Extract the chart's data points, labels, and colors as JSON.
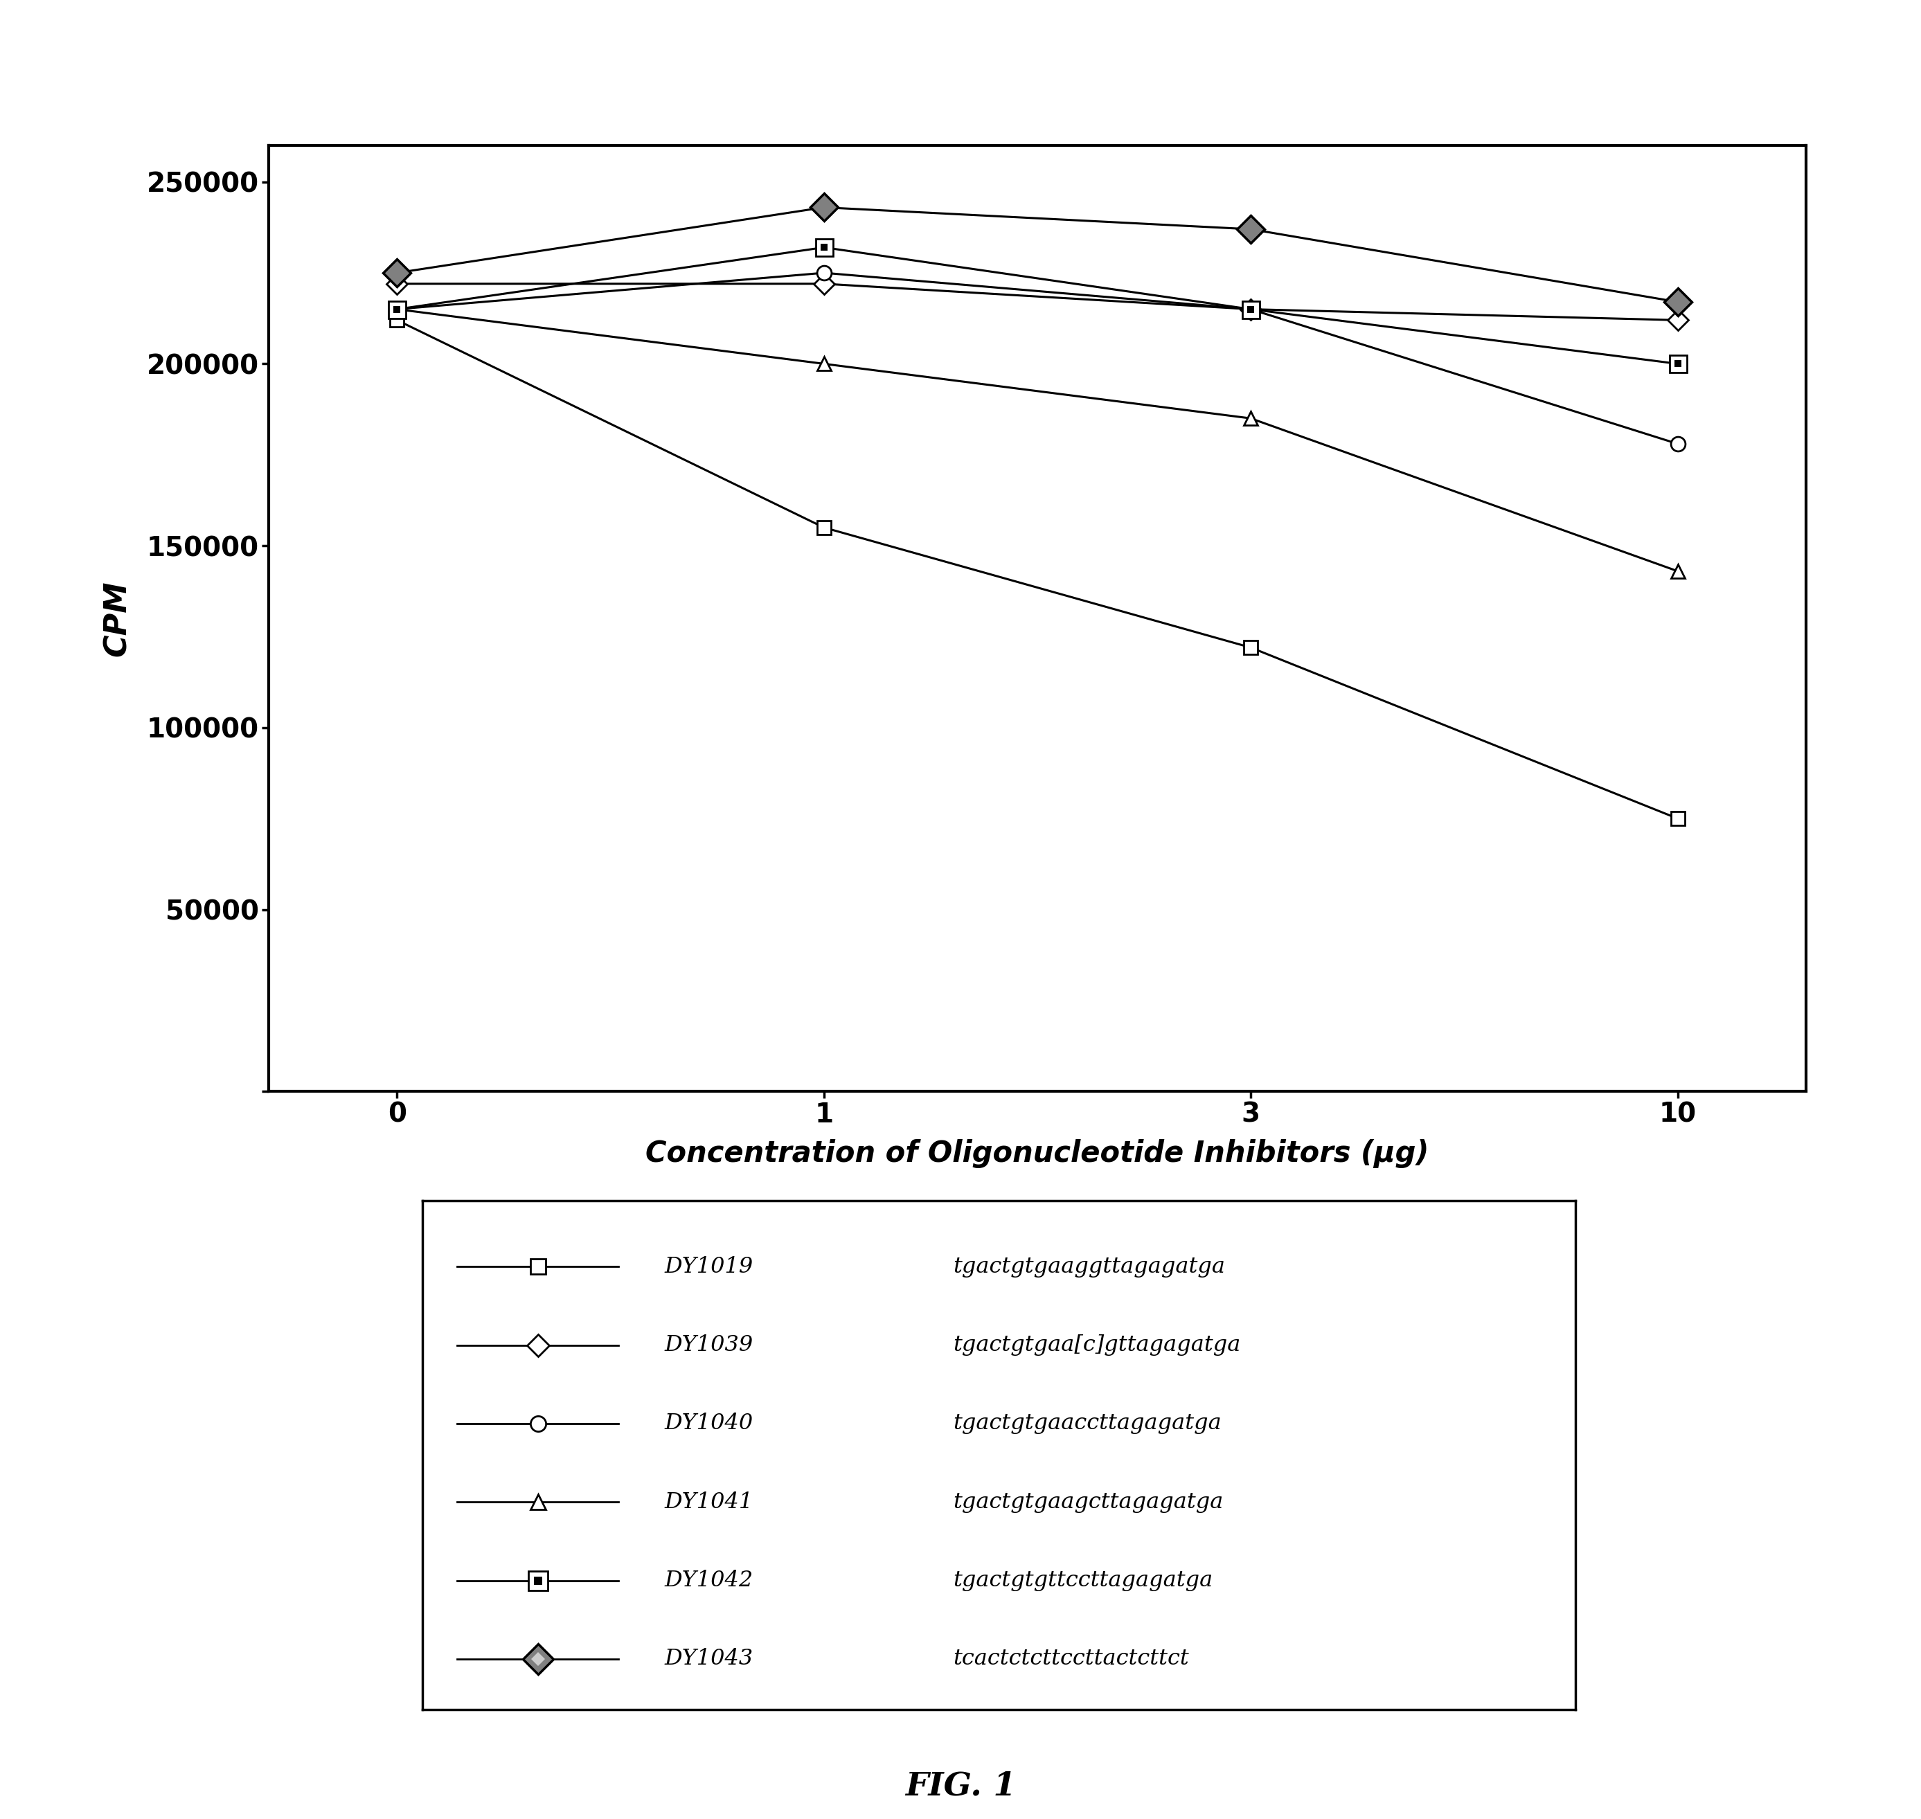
{
  "x": [
    0,
    1,
    2,
    3
  ],
  "x_labels": [
    "0",
    "1",
    "3",
    "10"
  ],
  "series": [
    {
      "name": "DY1019",
      "label_name": "DY1019",
      "label_seq": "tgactgtgaaggttagagatga",
      "y": [
        212000,
        155000,
        122000,
        75000
      ],
      "marker_style": "open_square"
    },
    {
      "name": "DY1039",
      "label_name": "DY1039",
      "label_seq": "tgactgtgaa[c]gttagagatga",
      "y": [
        222000,
        222000,
        215000,
        212000
      ],
      "marker_style": "open_diamond"
    },
    {
      "name": "DY1040",
      "label_name": "DY1040",
      "label_seq": "tgactgtgaaccttagagatga",
      "y": [
        215000,
        225000,
        215000,
        178000
      ],
      "marker_style": "open_circle"
    },
    {
      "name": "DY1041",
      "label_name": "DY1041",
      "label_seq": "tgactgtgaagcttagagatga",
      "y": [
        215000,
        200000,
        185000,
        143000
      ],
      "marker_style": "open_triangle"
    },
    {
      "name": "DY1042",
      "label_name": "DY1042",
      "label_seq": "tgactgtgttccttagagatga",
      "y": [
        215000,
        232000,
        215000,
        200000
      ],
      "marker_style": "double_square"
    },
    {
      "name": "DY1043",
      "label_name": "DY1043",
      "label_seq": "tcactctcttccttactcttct",
      "y": [
        225000,
        243000,
        237000,
        217000
      ],
      "marker_style": "hatched_diamond"
    }
  ],
  "xlabel": "Concentration of Oligonucleotide Inhibitors (μg)",
  "ylabel": "CPM",
  "ylim": [
    0,
    260000
  ],
  "yticks": [
    0,
    50000,
    100000,
    150000,
    200000,
    250000
  ],
  "ytick_labels": [
    "",
    "50000",
    "100000",
    "150000",
    "200000",
    "250000"
  ],
  "fig_caption": "FIG. 1",
  "line_color": "black",
  "background_color": "white"
}
